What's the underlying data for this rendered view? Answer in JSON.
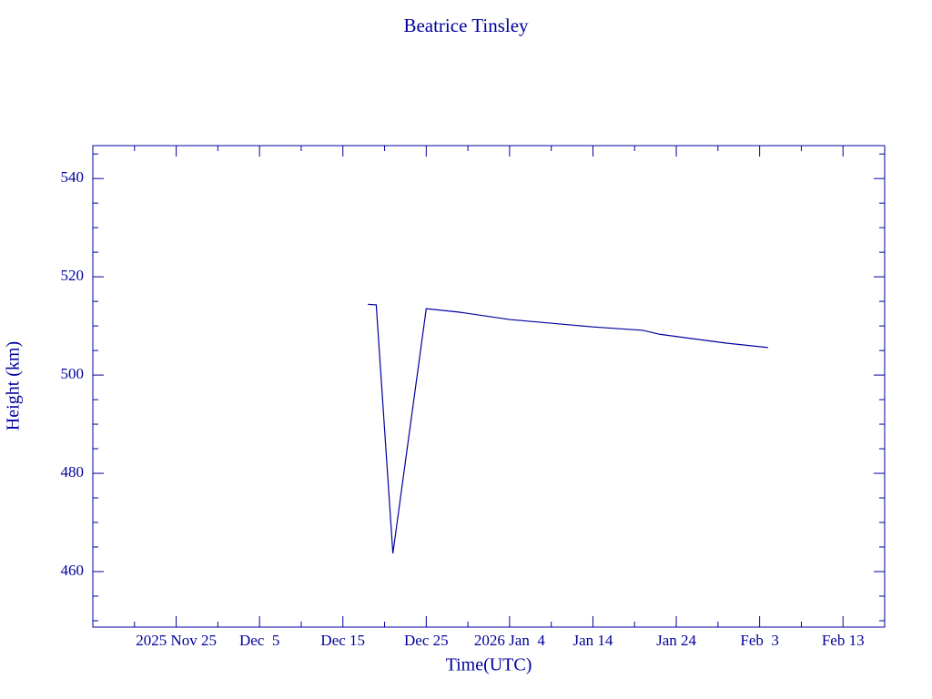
{
  "chart_data": {
    "type": "line",
    "title": "Beatrice Tinsley",
    "xlabel": "Time(UTC)",
    "ylabel": "Height (km)",
    "color": "#00009c",
    "x": [
      "2025-12-18",
      "2025-12-19",
      "2025-12-21",
      "2025-12-25",
      "2025-12-29",
      "2026-01-04",
      "2026-01-14",
      "2026-01-20",
      "2026-01-22",
      "2026-01-30",
      "2026-02-04"
    ],
    "series": [
      {
        "values": [
          514.4,
          514.3,
          463.7,
          513.5,
          512.8,
          511.3,
          509.8,
          509.1,
          508.3,
          506.5,
          505.6
        ]
      }
    ],
    "xlim": [
      "2025-11-15",
      "2026-02-18"
    ],
    "xticks": [
      {
        "value": "2025-11-25",
        "label": "2025 Nov 25"
      },
      {
        "value": "2025-12-05",
        "label": "Dec  5"
      },
      {
        "value": "2025-12-15",
        "label": "Dec 15"
      },
      {
        "value": "2025-12-25",
        "label": "Dec 25"
      },
      {
        "value": "2026-01-04",
        "label": "2026 Jan  4"
      },
      {
        "value": "2026-01-14",
        "label": "Jan 14"
      },
      {
        "value": "2026-01-24",
        "label": "Jan 24"
      },
      {
        "value": "2026-02-03",
        "label": "Feb  3"
      },
      {
        "value": "2026-02-13",
        "label": "Feb 13"
      }
    ],
    "xminorticks": [
      "2025-11-20",
      "2025-11-30",
      "2025-12-10",
      "2025-12-20",
      "2025-12-30",
      "2026-01-09",
      "2026-01-19",
      "2026-01-29",
      "2026-02-08"
    ],
    "ylim": [
      448.7,
      546.7
    ],
    "yticks": [
      460,
      480,
      500,
      520,
      540
    ],
    "yminorticks": [
      450,
      455,
      465,
      470,
      475,
      485,
      490,
      495,
      505,
      510,
      515,
      525,
      530,
      535,
      545
    ]
  }
}
